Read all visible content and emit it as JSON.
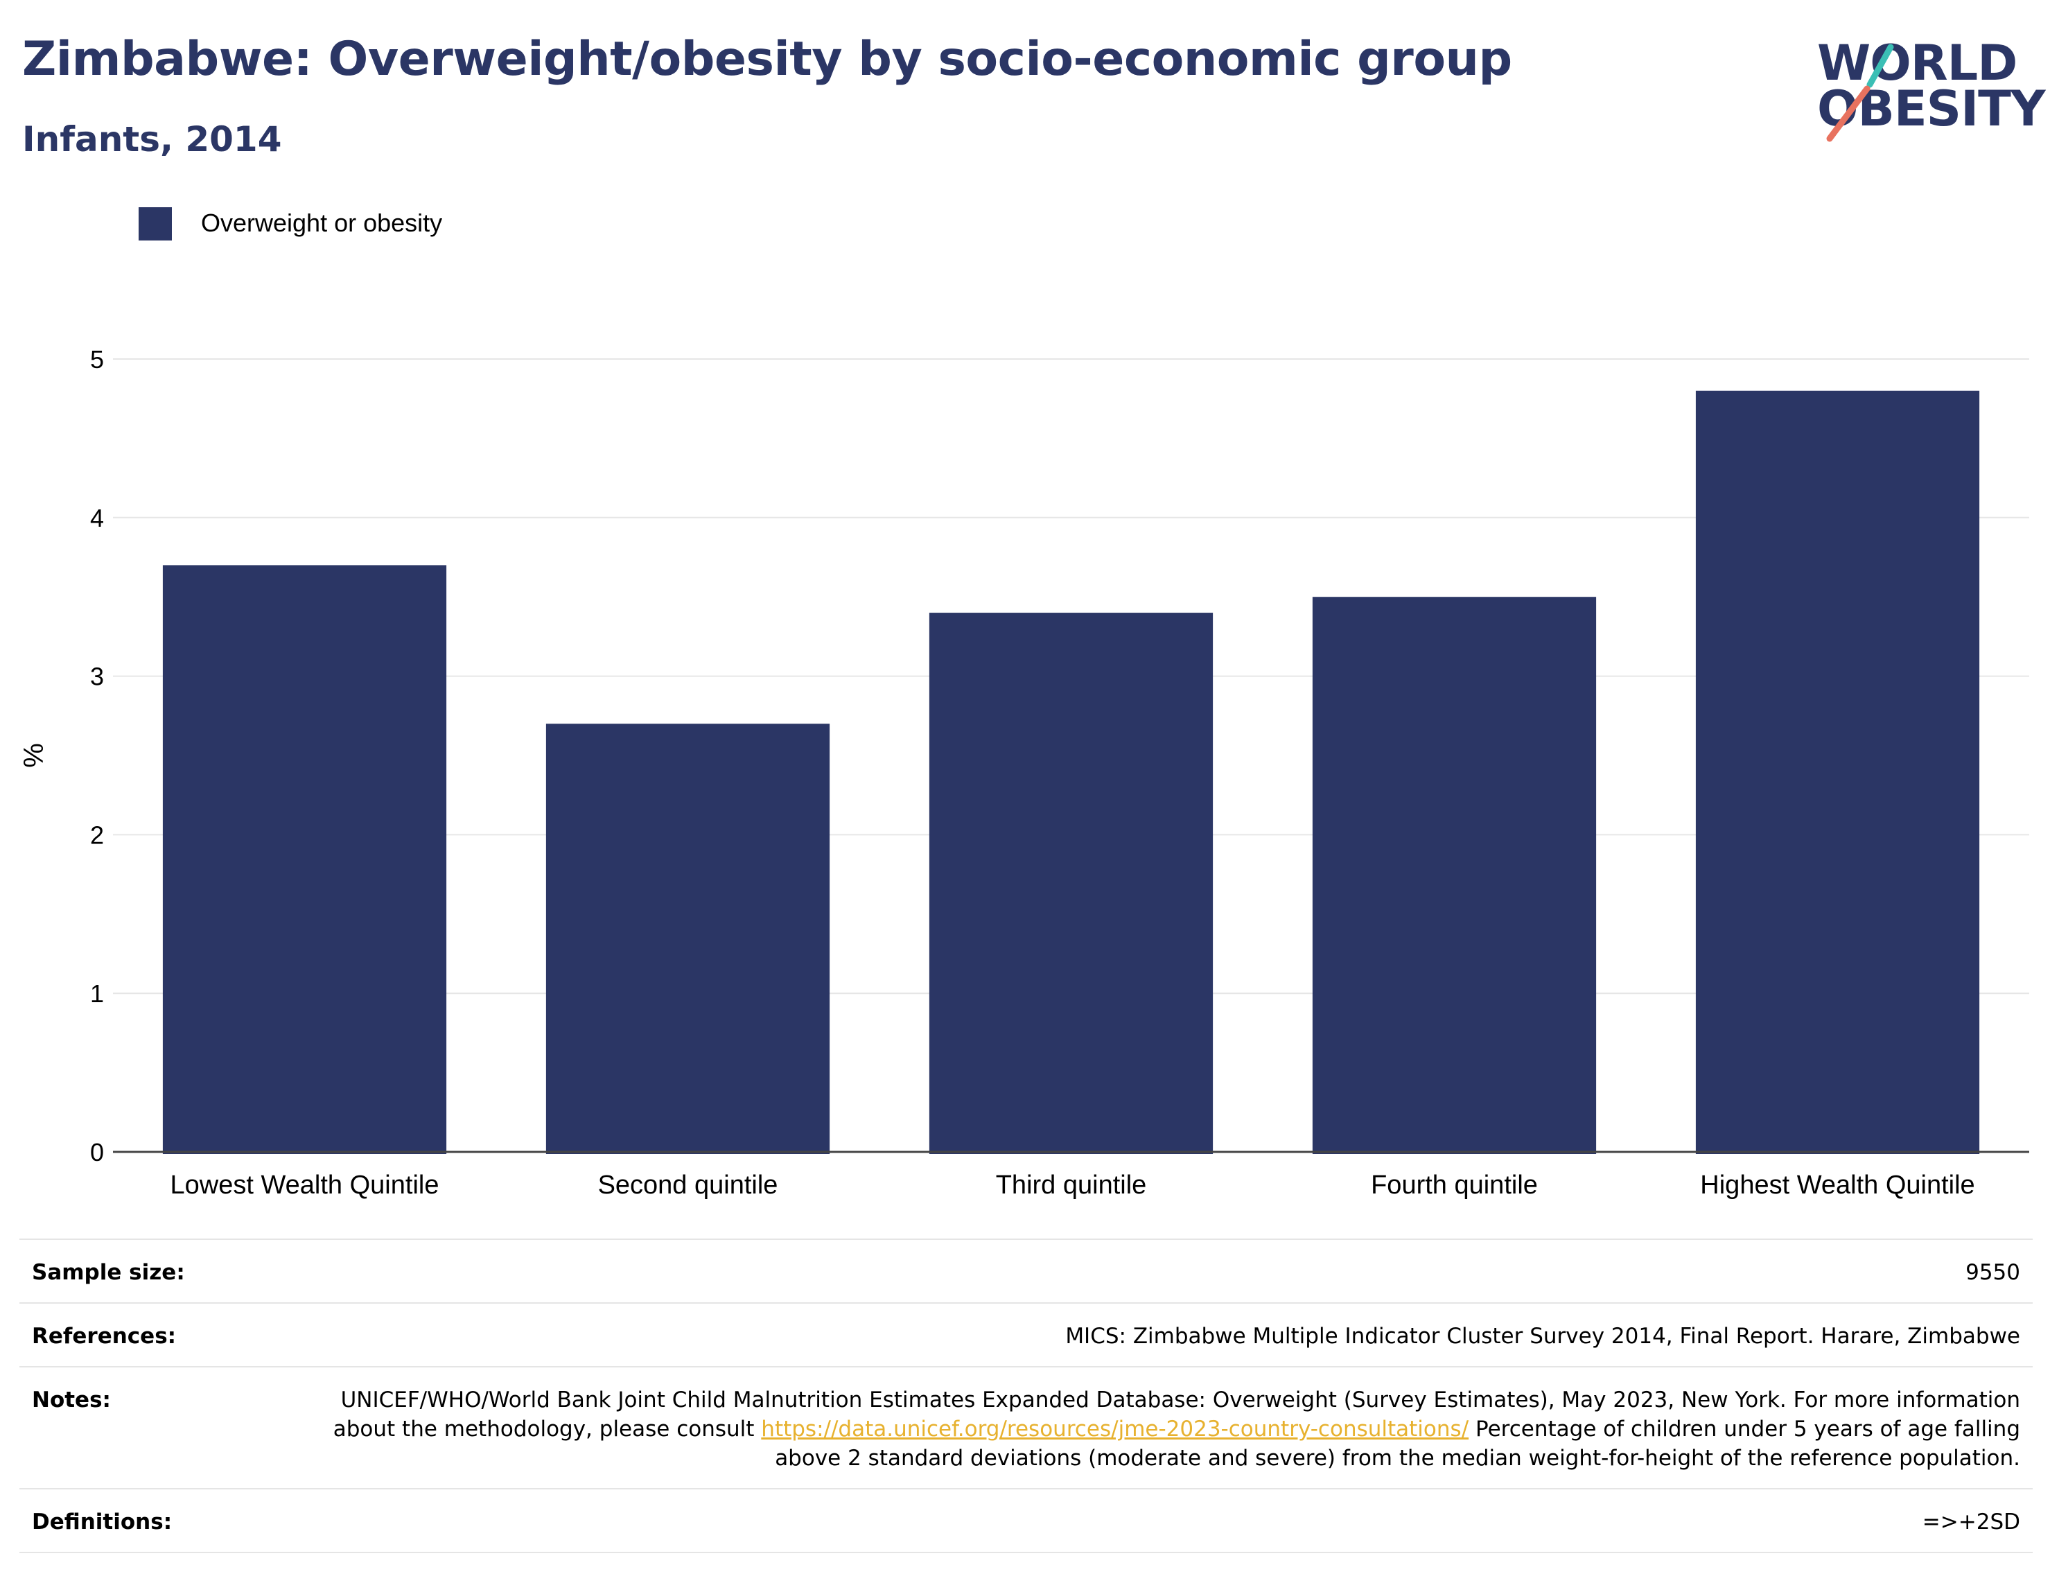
{
  "header": {
    "title": "Zimbabwe: Overweight/obesity by socio-economic group",
    "subtitle": "Infants, 2014"
  },
  "logo": {
    "line1": "WORLD",
    "line2": "OBESITY",
    "colors": {
      "text": "#2b3665",
      "slash_top": "#3bbfb5",
      "slash_bottom": "#e8725f"
    }
  },
  "legend": {
    "label": "Overweight or obesity",
    "color": "#2b3665"
  },
  "chart_data": {
    "type": "bar",
    "categories": [
      "Lowest Wealth Quintile",
      "Second quintile",
      "Third quintile",
      "Fourth quintile",
      "Highest Wealth Quintile"
    ],
    "series": [
      {
        "name": "Overweight or obesity",
        "values": [
          3.7,
          2.7,
          3.4,
          3.5,
          4.8
        ],
        "color": "#2b3665"
      }
    ],
    "ylabel": "%",
    "ylim": [
      0,
      5
    ],
    "yticks": [
      0,
      1,
      2,
      3,
      4,
      5
    ],
    "grid": true,
    "legend_position": "top-left"
  },
  "info": {
    "sample_size": {
      "label": "Sample size:",
      "value": "9550"
    },
    "references": {
      "label": "References:",
      "value": "MICS: Zimbabwe Multiple Indicator Cluster Survey 2014, Final Report. Harare, Zimbabwe"
    },
    "notes": {
      "label": "Notes:",
      "text_before": "UNICEF/WHO/World Bank Joint Child Malnutrition Estimates Expanded Database: Overweight (Survey Estimates), May 2023, New York. For more information about the methodology, please consult ",
      "link": "https://data.unicef.org/resources/jme-2023-country-consultations/",
      "text_after": " Percentage of children under 5 years of age falling above 2 standard deviations (moderate and severe) from the median weight-for-height of the reference population."
    },
    "definitions": {
      "label": "Definitions:",
      "value": "=>+2SD"
    }
  }
}
